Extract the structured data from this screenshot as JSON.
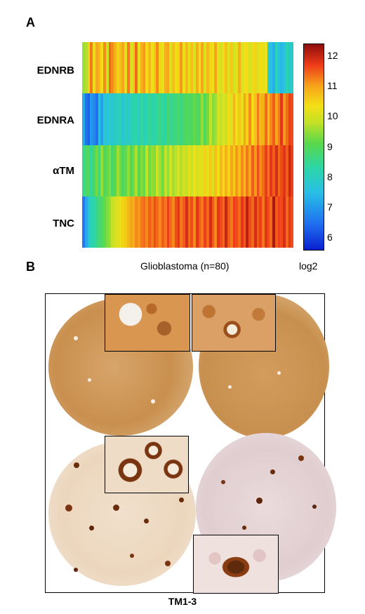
{
  "panel_a": {
    "letter": "A",
    "genes": [
      "EDNRB",
      "EDNRA",
      "αTM",
      "TNC"
    ],
    "colorbar_ticks": [
      "12",
      "11",
      "10",
      "9",
      "8",
      "7",
      "6"
    ],
    "colorbar_unit": "log2",
    "x_label": "Glioblastoma (n=80)"
  },
  "panel_b": {
    "letter": "B",
    "caption": "TM1-3"
  },
  "chart_data": {
    "type": "heatmap",
    "x_label": "Glioblastoma (n=80)",
    "rows": [
      "EDNRB",
      "EDNRA",
      "αTM",
      "TNC"
    ],
    "n_columns": 80,
    "colorbar_label": "log2",
    "value_range": [
      5.6,
      12.4
    ],
    "colorbar_ticks": [
      6,
      7,
      8,
      9,
      10,
      11,
      12
    ],
    "values": [
      [
        9.6,
        9.7,
        10.5,
        11.3,
        10.2,
        11.0,
        10.8,
        10.4,
        11.2,
        9.9,
        11.4,
        11.2,
        10.9,
        10.5,
        10.7,
        11.0,
        10.2,
        11.3,
        10.0,
        10.6,
        11.4,
        10.2,
        10.9,
        11.1,
        10.4,
        10.8,
        10.3,
        10.6,
        11.2,
        10.5,
        10.2,
        10.9,
        11.0,
        10.1,
        10.7,
        10.4,
        10.5,
        11.1,
        10.3,
        10.8,
        10.2,
        10.7,
        10.1,
        10.9,
        10.3,
        11.0,
        10.1,
        10.8,
        10.5,
        10.3,
        11.0,
        10.2,
        10.0,
        10.4,
        10.7,
        10.1,
        10.6,
        10.0,
        10.2,
        10.9,
        10.1,
        10.3,
        10.4,
        10.0,
        10.2,
        10.5,
        10.1,
        10.4,
        10.2,
        10.3,
        8.0,
        7.5,
        7.3,
        8.1,
        7.6,
        7.4,
        7.7,
        8.2,
        7.8,
        7.9
      ],
      [
        7.2,
        6.5,
        6.3,
        7.0,
        6.8,
        6.5,
        7.5,
        7.1,
        7.8,
        7.6,
        8.0,
        7.7,
        7.9,
        8.0,
        8.1,
        7.7,
        8.0,
        7.9,
        8.1,
        8.2,
        8.3,
        8.0,
        8.4,
        8.1,
        8.2,
        8.5,
        8.2,
        8.3,
        8.4,
        8.6,
        8.4,
        8.3,
        8.8,
        8.5,
        8.6,
        8.7,
        8.9,
        8.6,
        8.8,
        9.0,
        8.9,
        9.0,
        9.2,
        8.9,
        9.1,
        9.5,
        9.0,
        9.3,
        9.8,
        9.4,
        9.6,
        10.0,
        9.8,
        10.2,
        9.9,
        10.4,
        10.1,
        10.8,
        10.3,
        10.6,
        10.2,
        11.0,
        10.5,
        11.2,
        10.4,
        10.7,
        11.3,
        10.8,
        10.9,
        11.4,
        10.7,
        11.2,
        11.5,
        11.0,
        11.3,
        11.8,
        11.1,
        11.4,
        11.7,
        11.6
      ],
      [
        8.6,
        8.9,
        9.1,
        8.4,
        8.8,
        9.3,
        8.7,
        9.5,
        9.0,
        9.2,
        9.4,
        8.8,
        9.1,
        9.6,
        9.3,
        8.9,
        9.2,
        9.5,
        9.0,
        9.3,
        9.7,
        9.1,
        9.4,
        9.2,
        9.8,
        9.3,
        9.5,
        9.4,
        9.9,
        9.6,
        9.3,
        9.8,
        9.5,
        10.0,
        9.6,
        9.8,
        10.1,
        9.7,
        10.0,
        9.8,
        10.2,
        9.9,
        10.3,
        10.0,
        10.4,
        10.1,
        10.5,
        10.2,
        10.6,
        10.1,
        10.7,
        10.3,
        10.8,
        10.4,
        10.9,
        10.5,
        11.0,
        10.6,
        11.1,
        10.7,
        11.2,
        10.8,
        11.3,
        11.0,
        11.5,
        11.1,
        11.6,
        11.2,
        11.4,
        11.7,
        11.3,
        11.8,
        11.5,
        11.9,
        11.4,
        11.6,
        11.8,
        11.5,
        12.0,
        11.7
      ],
      [
        6.6,
        7.2,
        7.7,
        8.1,
        8.3,
        8.5,
        8.8,
        8.9,
        9.2,
        9.4,
        9.5,
        9.8,
        10.0,
        10.1,
        10.3,
        10.5,
        10.6,
        10.8,
        11.0,
        10.9,
        11.2,
        11.1,
        11.3,
        11.4,
        11.2,
        11.5,
        11.3,
        11.6,
        11.4,
        11.2,
        11.5,
        11.3,
        11.7,
        11.4,
        11.2,
        11.6,
        11.8,
        11.3,
        11.5,
        11.9,
        11.4,
        11.6,
        11.2,
        11.8,
        11.5,
        11.3,
        11.7,
        11.4,
        11.9,
        11.5,
        11.2,
        11.8,
        11.6,
        11.4,
        12.0,
        11.5,
        11.3,
        11.7,
        11.6,
        11.4,
        11.8,
        11.5,
        12.1,
        11.6,
        11.4,
        11.9,
        11.5,
        11.7,
        11.3,
        11.8,
        11.6,
        11.4,
        12.2,
        11.5,
        11.7,
        11.6,
        11.9,
        11.4,
        11.8,
        11.6
      ]
    ]
  }
}
